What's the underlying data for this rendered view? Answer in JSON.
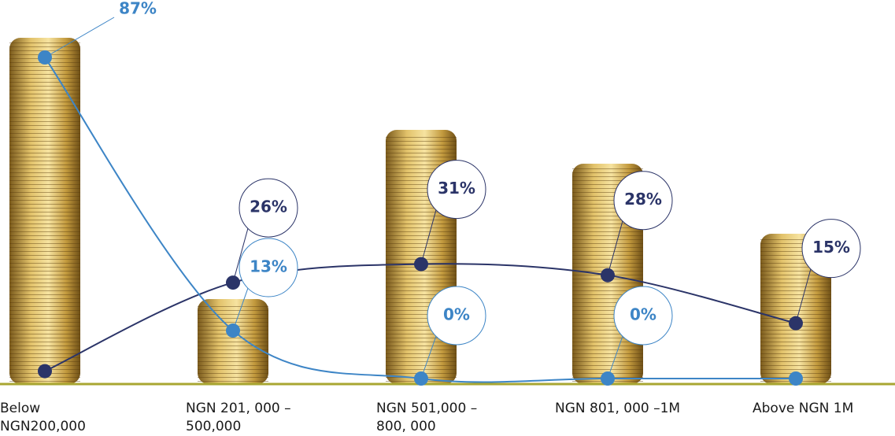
{
  "chart_data": {
    "type": "line",
    "categories": [
      "Below NGN200,000",
      "NGN 201, 000 –500,000",
      "NGN 501,000 –800, 000",
      "NGN 801, 000 –1M",
      "Above NGN 1M"
    ],
    "series": [
      {
        "color": "#2b3468",
        "values": [
          2,
          26,
          31,
          28,
          15
        ],
        "value_labels": [
          null,
          "26%",
          "31%",
          "28%",
          "15%"
        ]
      },
      {
        "color": "#3d85c6",
        "values": [
          87,
          13,
          0,
          0,
          0
        ],
        "value_labels": [
          "87%",
          "13%",
          "0%",
          "0%",
          null
        ]
      }
    ]
  }
}
